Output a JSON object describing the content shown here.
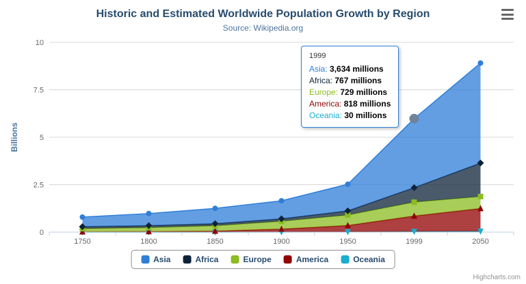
{
  "header": {
    "title": "Historic and Estimated Worldwide Population Growth by Region",
    "subtitle": "Source: Wikipedia.org"
  },
  "credits": {
    "label": "Highcharts.com"
  },
  "colors": {
    "title_text": "#274b6d",
    "subtitle_text": "#4d759e",
    "axis_text": "#666666",
    "grid_line": "#d8d8d8",
    "axis_line": "#c0d0e0",
    "legend_text": "#274b6d"
  },
  "tooltip": {
    "header": "1999",
    "border_color": "#2f7ed8",
    "rows": [
      {
        "name": "Asia",
        "value": "3,634",
        "suffix": " millions",
        "color": "#2f7ed8"
      },
      {
        "name": "Africa",
        "value": "767",
        "suffix": " millions",
        "color": "#0d233a"
      },
      {
        "name": "Europe",
        "value": "729",
        "suffix": " millions",
        "color": "#8bbc21"
      },
      {
        "name": "America",
        "value": "818",
        "suffix": " millions",
        "color": "#910000"
      },
      {
        "name": "Oceania",
        "value": "30",
        "suffix": " millions",
        "color": "#1aadce"
      }
    ]
  },
  "chart_data": {
    "type": "area",
    "stacking": "normal",
    "title": "Historic and Estimated Worldwide Population Growth by Region",
    "subtitle": "Source: Wikipedia.org",
    "categories": [
      "1750",
      "1800",
      "1850",
      "1900",
      "1950",
      "1999",
      "2050"
    ],
    "xlabel": "",
    "ylabel": "Billions",
    "ylim": [
      0,
      10
    ],
    "yticks": [
      0,
      2.5,
      5,
      7.5,
      10
    ],
    "values_unit": "millions",
    "grid": true,
    "legend_position": "bottom",
    "series": [
      {
        "name": "Asia",
        "color": "#2f7ed8",
        "marker": "circle",
        "values": [
          502,
          635,
          809,
          947,
          1402,
          3634,
          5268
        ]
      },
      {
        "name": "Africa",
        "color": "#0d233a",
        "marker": "diamond",
        "values": [
          106,
          107,
          111,
          133,
          221,
          767,
          1766
        ]
      },
      {
        "name": "Europe",
        "color": "#8bbc21",
        "marker": "square",
        "values": [
          163,
          203,
          276,
          408,
          547,
          729,
          628
        ]
      },
      {
        "name": "America",
        "color": "#910000",
        "marker": "triangle",
        "values": [
          18,
          31,
          54,
          156,
          339,
          818,
          1201
        ]
      },
      {
        "name": "Oceania",
        "color": "#1aadce",
        "marker": "triangle-down",
        "values": [
          2,
          2,
          2,
          6,
          13,
          30,
          46
        ]
      }
    ],
    "hovered_point": {
      "series": "Asia",
      "category": "1999",
      "marker_color": "#6f839b"
    }
  }
}
